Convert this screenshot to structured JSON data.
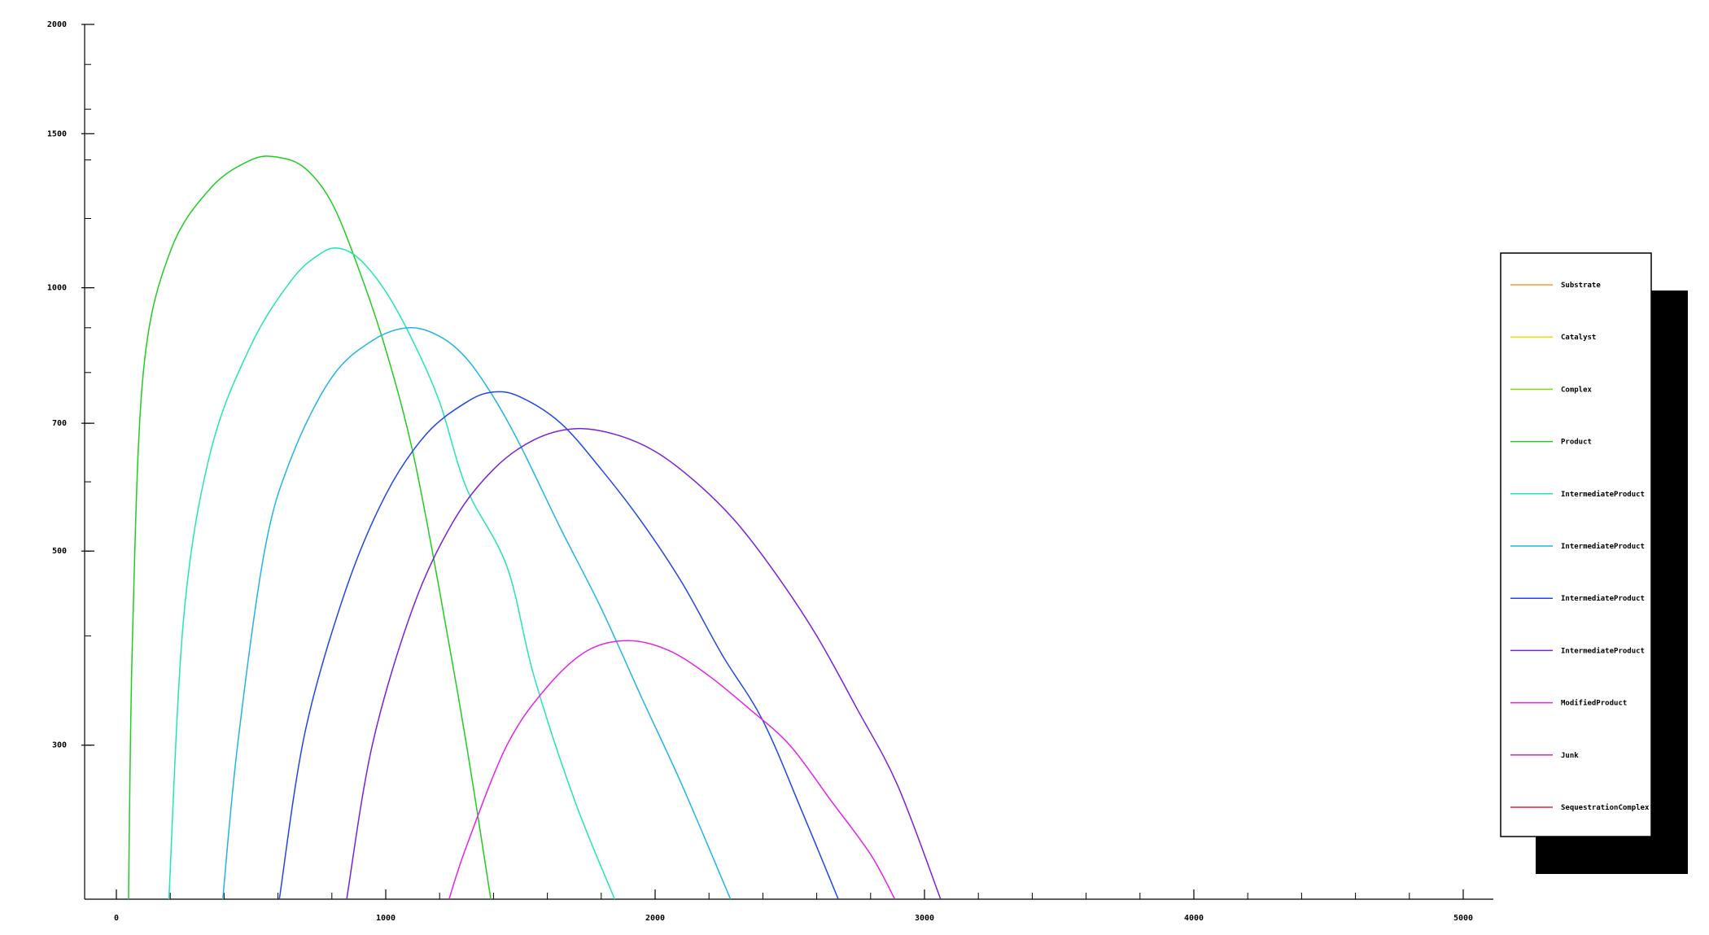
{
  "chart_data": {
    "type": "line",
    "y_scale": "log",
    "xlim": [
      0,
      5000
    ],
    "ylim": [
      200,
      2000
    ],
    "x_ticks": [
      0,
      1000,
      2000,
      3000,
      4000,
      5000
    ],
    "y_ticks": [
      300,
      500,
      700,
      1000,
      1500,
      2000
    ],
    "legend_position": "right",
    "series": [
      {
        "name": "Substrate",
        "color": "#ff9933",
        "points": []
      },
      {
        "name": "Catalyst",
        "color": "#e6e600",
        "points": []
      },
      {
        "name": "Complex",
        "color": "#80e000",
        "points": []
      },
      {
        "name": "Product",
        "color": "#22cc22",
        "points": [
          [
            45,
            200
          ],
          [
            60,
            400
          ],
          [
            100,
            800
          ],
          [
            200,
            1100
          ],
          [
            350,
            1300
          ],
          [
            500,
            1400
          ],
          [
            600,
            1410
          ],
          [
            700,
            1370
          ],
          [
            800,
            1250
          ],
          [
            900,
            1050
          ],
          [
            1000,
            850
          ],
          [
            1100,
            650
          ],
          [
            1200,
            450
          ],
          [
            1300,
            300
          ],
          [
            1390,
            200
          ]
        ]
      },
      {
        "name": "IntermediateProduct",
        "color": "#22e6b4",
        "points": [
          [
            195,
            200
          ],
          [
            250,
            420
          ],
          [
            350,
            650
          ],
          [
            500,
            860
          ],
          [
            650,
            1020
          ],
          [
            750,
            1090
          ],
          [
            820,
            1110
          ],
          [
            900,
            1080
          ],
          [
            1000,
            990
          ],
          [
            1100,
            870
          ],
          [
            1200,
            740
          ],
          [
            1300,
            590
          ],
          [
            1450,
            480
          ],
          [
            1550,
            360
          ],
          [
            1700,
            260
          ],
          [
            1850,
            200
          ]
        ]
      },
      {
        "name": "IntermediateProduct",
        "color": "#22b4e6",
        "points": [
          [
            395,
            200
          ],
          [
            450,
            300
          ],
          [
            550,
            500
          ],
          [
            650,
            640
          ],
          [
            800,
            790
          ],
          [
            950,
            870
          ],
          [
            1085,
            900
          ],
          [
            1200,
            880
          ],
          [
            1300,
            830
          ],
          [
            1400,
            750
          ],
          [
            1500,
            660
          ],
          [
            1650,
            530
          ],
          [
            1800,
            430
          ],
          [
            1950,
            340
          ],
          [
            2100,
            270
          ],
          [
            2280,
            200
          ]
        ]
      },
      {
        "name": "IntermediateProduct",
        "color": "#2246e6",
        "points": [
          [
            605,
            200
          ],
          [
            700,
            310
          ],
          [
            850,
            450
          ],
          [
            1000,
            580
          ],
          [
            1150,
            680
          ],
          [
            1300,
            740
          ],
          [
            1400,
            760
          ],
          [
            1500,
            750
          ],
          [
            1650,
            700
          ],
          [
            1800,
            620
          ],
          [
            1950,
            540
          ],
          [
            2100,
            460
          ],
          [
            2250,
            380
          ],
          [
            2400,
            320
          ],
          [
            2550,
            250
          ],
          [
            2680,
            200
          ]
        ]
      },
      {
        "name": "IntermediateProduct",
        "color": "#7a22d9",
        "points": [
          [
            855,
            200
          ],
          [
            950,
            300
          ],
          [
            1100,
            430
          ],
          [
            1250,
            540
          ],
          [
            1400,
            620
          ],
          [
            1550,
            670
          ],
          [
            1700,
            690
          ],
          [
            1850,
            680
          ],
          [
            2000,
            650
          ],
          [
            2150,
            600
          ],
          [
            2300,
            540
          ],
          [
            2450,
            470
          ],
          [
            2600,
            400
          ],
          [
            2750,
            330
          ],
          [
            2900,
            270
          ],
          [
            3060,
            200
          ]
        ]
      },
      {
        "name": "ModifiedProduct",
        "color": "#e622e6",
        "points": [
          [
            1235,
            200
          ],
          [
            1300,
            230
          ],
          [
            1450,
            300
          ],
          [
            1600,
            350
          ],
          [
            1750,
            385
          ],
          [
            1900,
            395
          ],
          [
            2050,
            385
          ],
          [
            2200,
            360
          ],
          [
            2350,
            330
          ],
          [
            2500,
            300
          ],
          [
            2650,
            260
          ],
          [
            2800,
            225
          ],
          [
            2890,
            200
          ]
        ]
      },
      {
        "name": "Junk",
        "color": "#e622b4",
        "points": []
      },
      {
        "name": "SequestrationComplex",
        "color": "#e6224a",
        "points": []
      }
    ]
  }
}
